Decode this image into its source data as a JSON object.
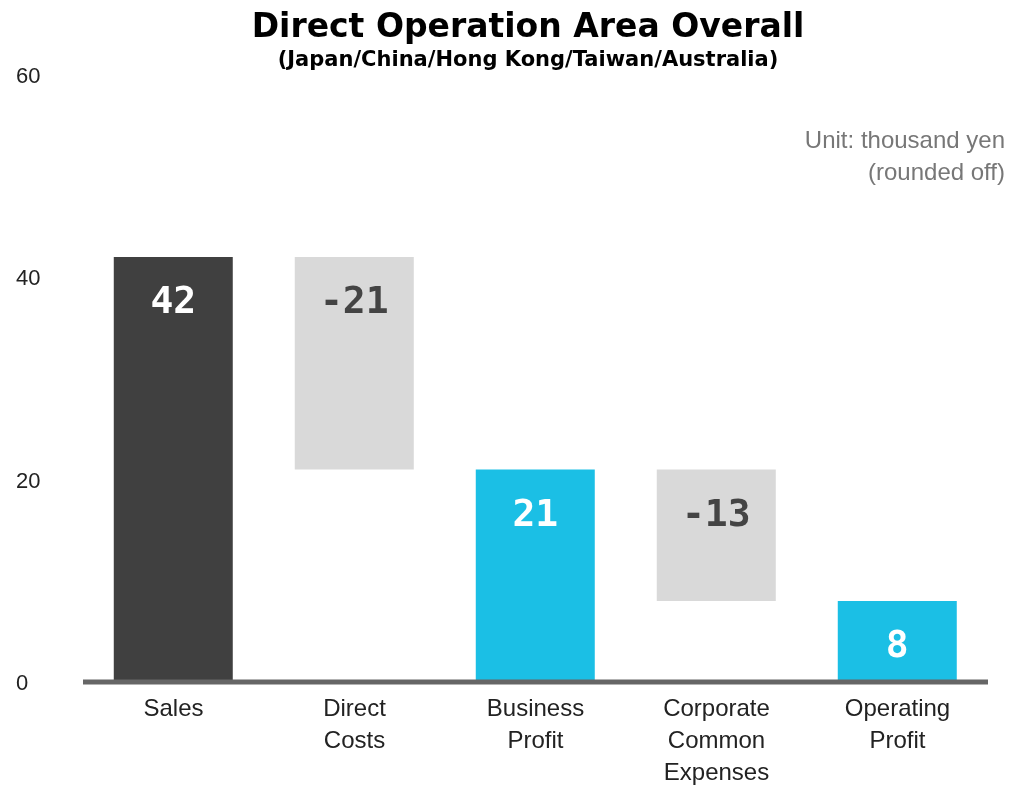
{
  "chart_data": {
    "type": "bar",
    "title": "Direct Operation Area Overall",
    "subtitle": "(Japan/China/Hong Kong/Taiwan/Australia)",
    "categories": [
      "Sales",
      "Direct Costs",
      "Business Profit",
      "Corporate Common Expenses",
      "Operating Profit"
    ],
    "values": [
      42,
      -21,
      21,
      -13,
      8
    ],
    "base": [
      0,
      42,
      0,
      21,
      0
    ],
    "colors": [
      "#404040",
      "#d9d9d9",
      "#1bbfe5",
      "#d9d9d9",
      "#1bbfe5"
    ],
    "ylim": [
      0,
      60
    ],
    "yticks": [
      0,
      20,
      40,
      60
    ],
    "data_labels": true,
    "annotations": [
      "Unit: thousand yen (rounded off)"
    ]
  }
}
